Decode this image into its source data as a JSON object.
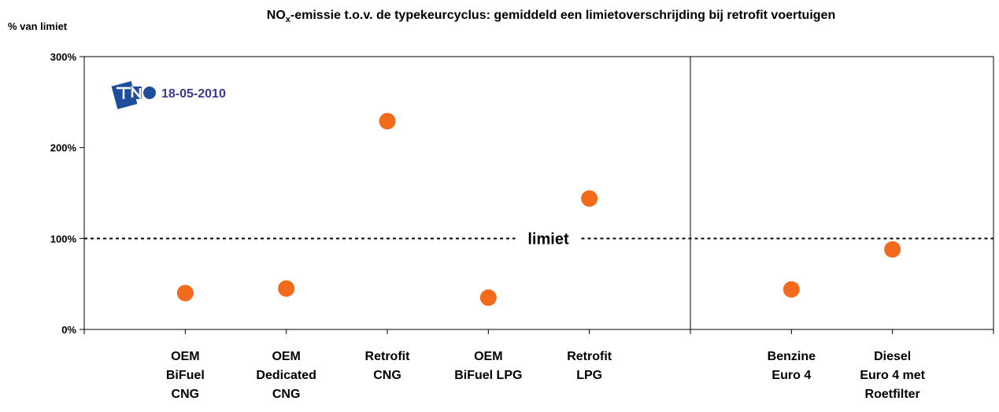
{
  "chart_data": {
    "type": "scatter",
    "title": [
      "NO",
      "x",
      "-emissie t.o.v. de typekeurcyclus: gemiddeld een limietoverschrijding bij retrofit voertuigen"
    ],
    "y_label": "% van limiet",
    "annotation": "18-05-2010",
    "categories": [
      [
        "OEM",
        "BiFuel",
        "CNG"
      ],
      [
        "OEM",
        "Dedicated",
        "CNG"
      ],
      [
        "Retrofit",
        "CNG"
      ],
      [
        "OEM",
        "BiFuel LPG"
      ],
      [
        "Retrofit",
        "LPG"
      ],
      null,
      [
        "Benzine",
        "Euro 4"
      ],
      [
        "Diesel",
        "Euro 4 met",
        "Roetfilter"
      ]
    ],
    "values": [
      40,
      45,
      229,
      35,
      144,
      null,
      44,
      88
    ],
    "color": "#f26a1b",
    "ylim": [
      0,
      300
    ],
    "yticks": [
      {
        "value": 0,
        "label": "0%"
      },
      {
        "value": 100,
        "label": "100%"
      },
      {
        "value": 200,
        "label": "200%"
      },
      {
        "value": 300,
        "label": "300%"
      }
    ],
    "reference_line": {
      "value": 100,
      "label": "limiet"
    },
    "grid": false
  }
}
